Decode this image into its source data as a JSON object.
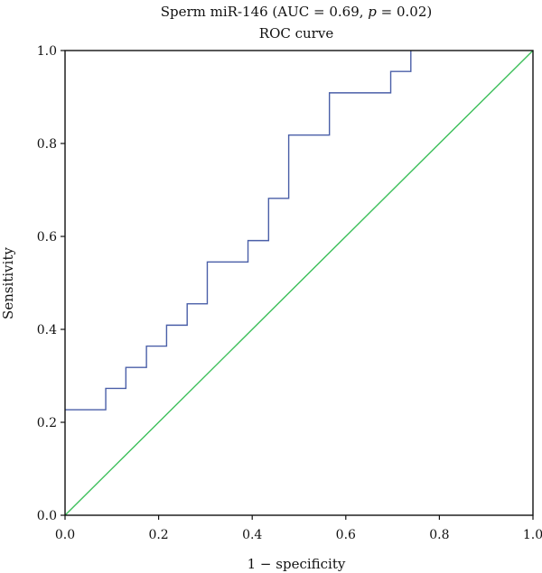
{
  "chart_data": {
    "type": "line",
    "title_prefix": "Sperm miR-146 (AUC = 0.69, ",
    "title_p": "p",
    "title_suffix": " = 0.02)",
    "subtitle": "ROC curve",
    "xlabel": "1 − specificity",
    "ylabel": "Sensitivity",
    "xlim": [
      0,
      1
    ],
    "ylim": [
      0,
      1
    ],
    "xticks": [
      "0.0",
      "0.2",
      "0.4",
      "0.6",
      "0.8",
      "1.0"
    ],
    "yticks": [
      "0.0",
      "0.2",
      "0.4",
      "0.6",
      "0.8",
      "1.0"
    ],
    "grid": false,
    "series": [
      {
        "color": "#4a5fa8",
        "step": true,
        "x": [
          0.0,
          0.087,
          0.13,
          0.174,
          0.217,
          0.261,
          0.304,
          0.348,
          0.391,
          0.435,
          0.478,
          0.522,
          0.565,
          0.696,
          0.739
        ],
        "y": [
          0.227,
          0.273,
          0.318,
          0.364,
          0.409,
          0.455,
          0.545,
          0.545,
          0.591,
          0.682,
          0.818,
          0.818,
          0.909,
          0.955,
          1.0
        ]
      },
      {
        "color": "#3cbf5a",
        "step": false,
        "x": [
          0,
          1
        ],
        "y": [
          0,
          1
        ]
      }
    ]
  }
}
